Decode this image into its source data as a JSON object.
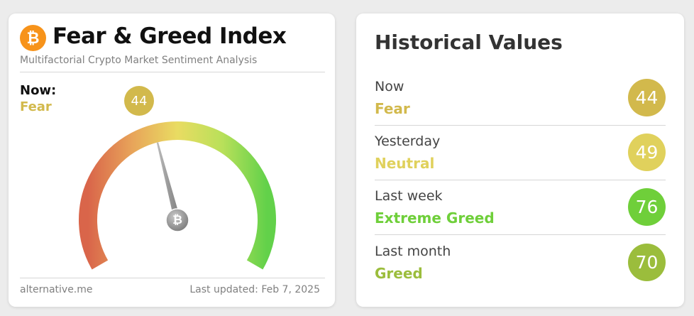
{
  "fear_greed": {
    "title": "Fear & Greed Index",
    "subtitle": "Multifactorial Crypto Market Sentiment Analysis",
    "logo_icon": "bitcoin-icon",
    "now_label": "Now:",
    "now_classification": "Fear",
    "value": "44",
    "value_numeric": 44,
    "gauge_range": [
      0,
      100
    ],
    "value_color": "#d2b94c",
    "footer_source": "alternative.me",
    "footer_updated": "Last updated: Feb 7, 2025"
  },
  "historical": {
    "title": "Historical Values",
    "rows": [
      {
        "period": "Now",
        "classification": "Fear",
        "value": "44",
        "color": "#d2b94c"
      },
      {
        "period": "Yesterday",
        "classification": "Neutral",
        "value": "49",
        "color": "#e0d15c"
      },
      {
        "period": "Last week",
        "classification": "Extreme Greed",
        "value": "76",
        "color": "#6fcf3a"
      },
      {
        "period": "Last month",
        "classification": "Greed",
        "value": "70",
        "color": "#9bbd3c"
      }
    ]
  }
}
